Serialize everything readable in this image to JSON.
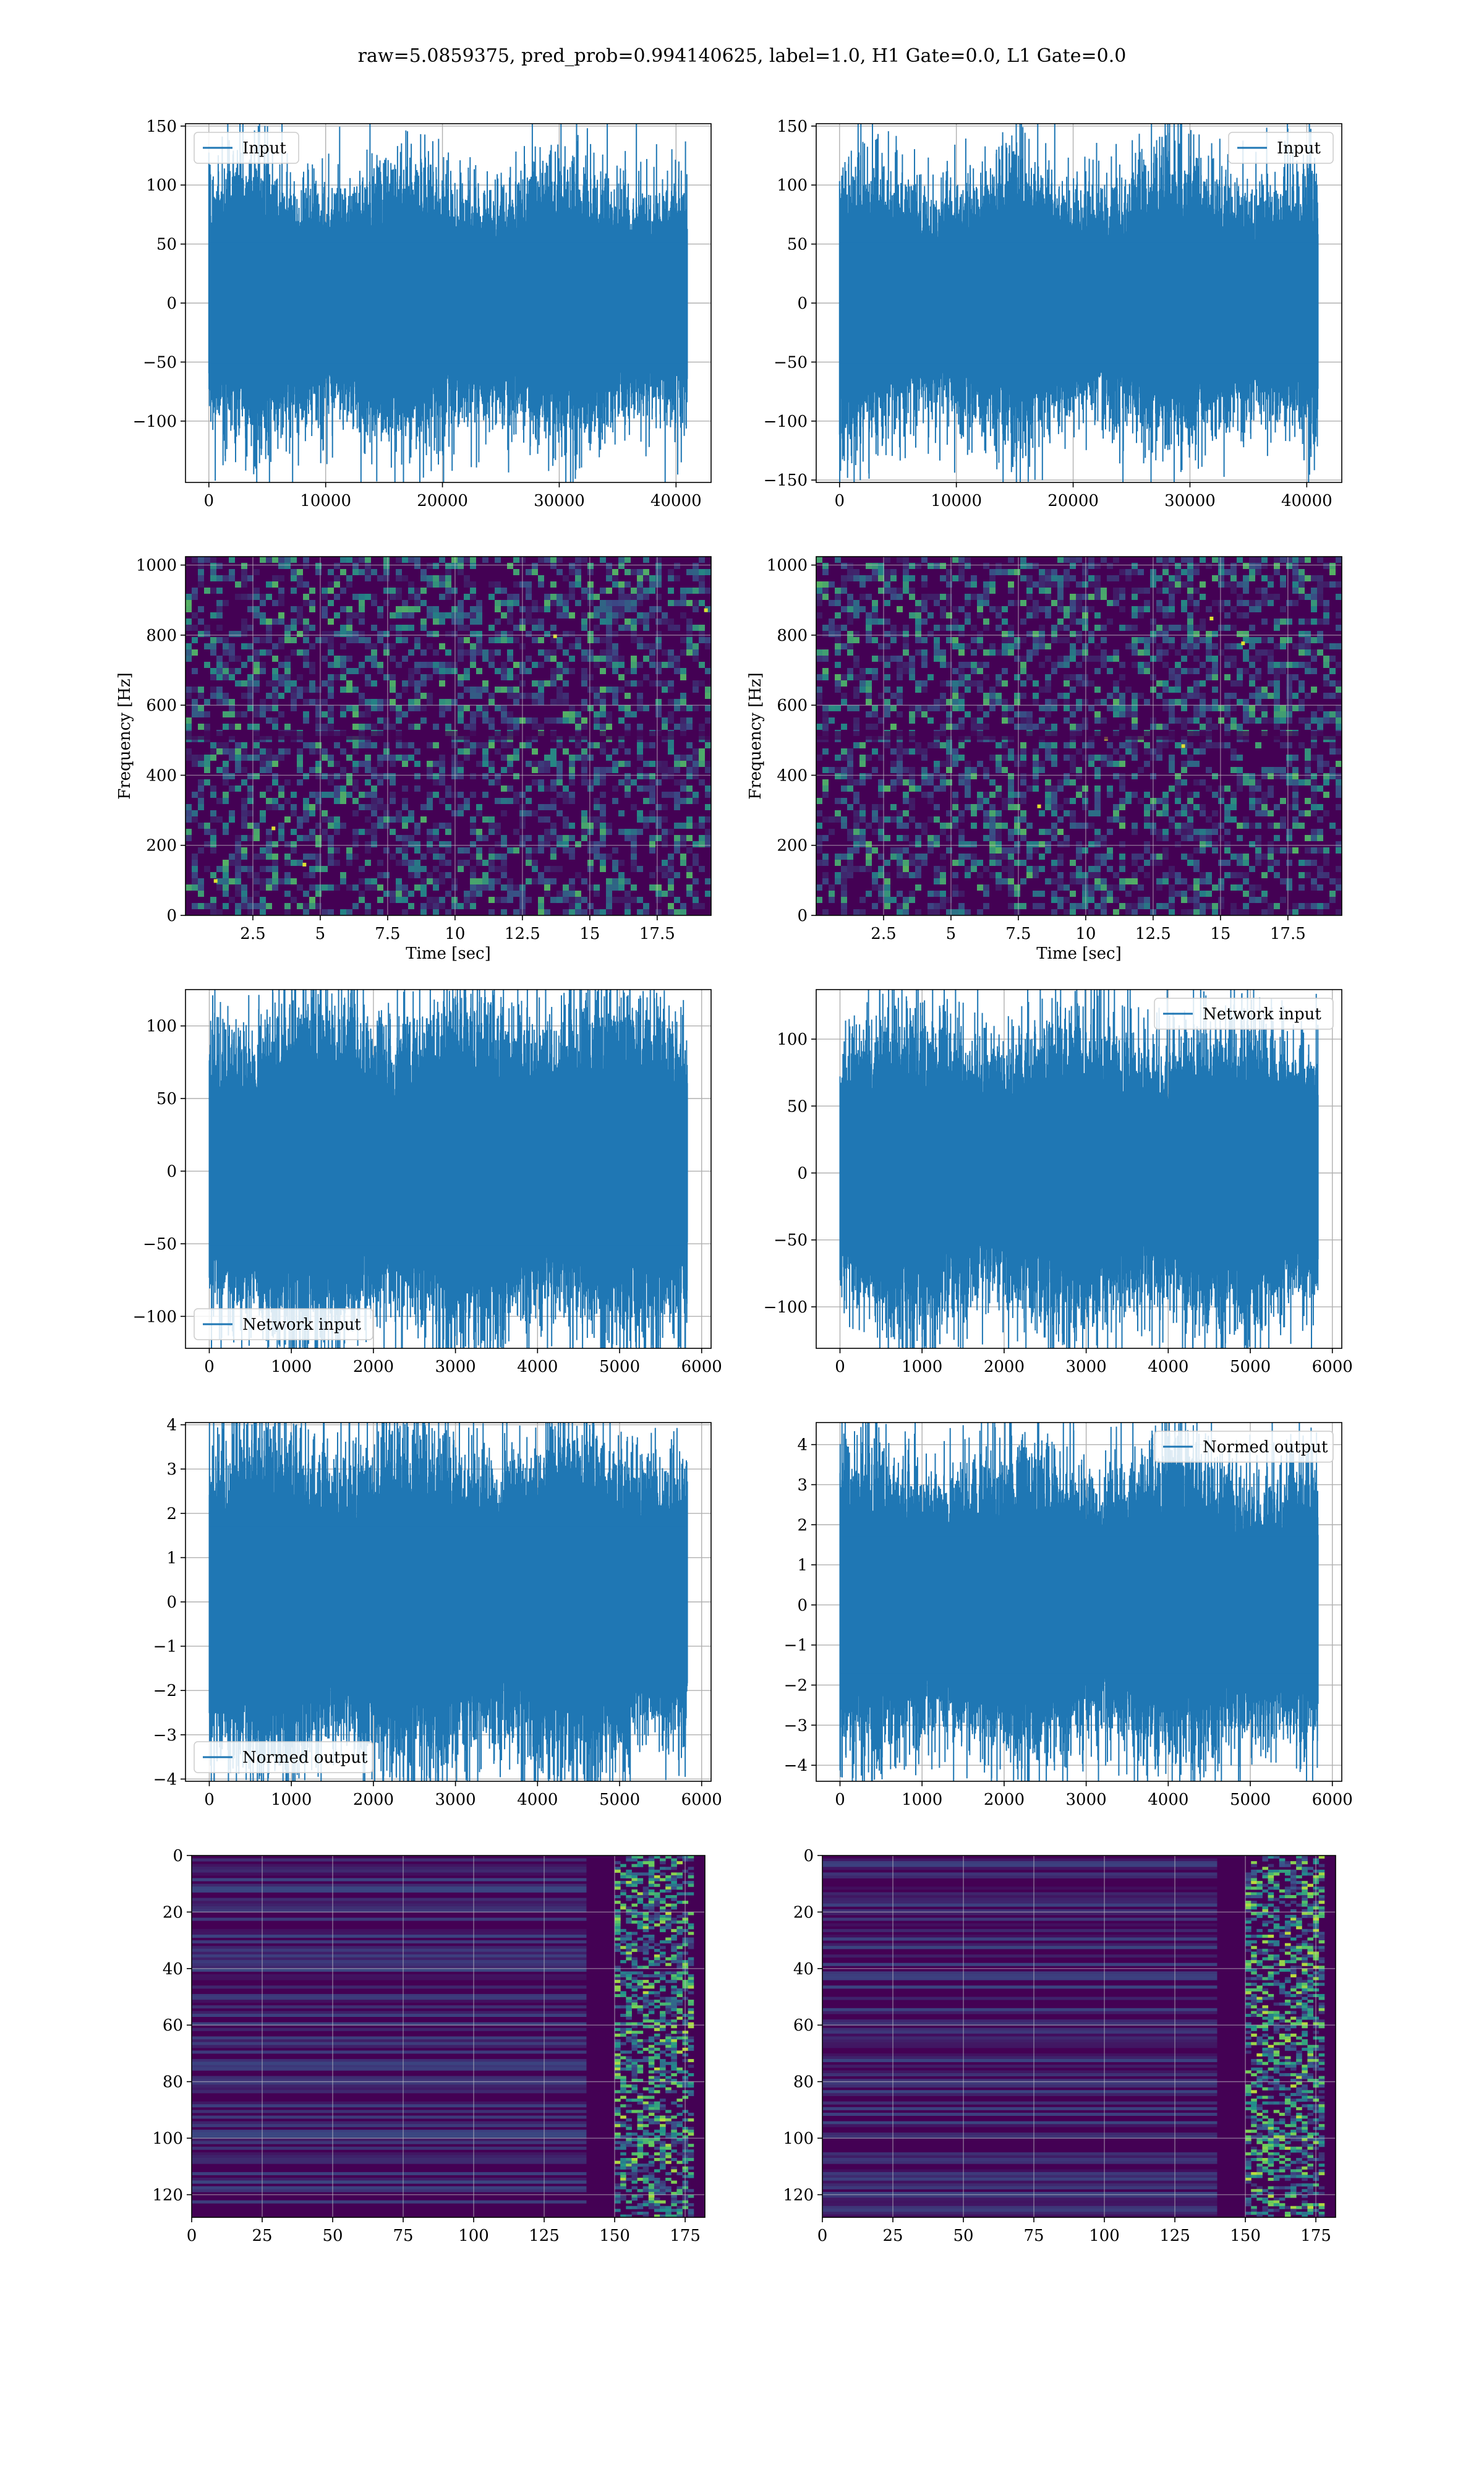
{
  "figure": {
    "suptitle": "raw=5.0859375, pred_prob=0.994140625, label=1.0, H1 Gate=0.0, L1 Gate=0.0"
  },
  "colors": {
    "line": "#1f77b4",
    "grid": "#b0b0b0",
    "viridis_dark": "#440154",
    "viridis_blue": "#31688e",
    "viridis_teal": "#21918c",
    "viridis_green": "#5ec962",
    "viridis_yellow": "#fde725"
  },
  "chart_data": [
    {
      "id": "ts-input-left",
      "type": "line",
      "series": [
        {
          "name": "Input"
        }
      ],
      "legend": "top-left",
      "xlim": [
        -2000,
        43000
      ],
      "ylim": [
        -152,
        152
      ],
      "n": 40960,
      "amplitude": 30,
      "xticks": [
        0,
        10000,
        20000,
        30000,
        40000
      ],
      "yticks": [
        -100,
        -50,
        0,
        50,
        100,
        150
      ],
      "grid": true,
      "xlabel": "",
      "ylabel": ""
    },
    {
      "id": "ts-input-right",
      "type": "line",
      "series": [
        {
          "name": "Input"
        }
      ],
      "legend": "top-right",
      "xlim": [
        -2000,
        43000
      ],
      "ylim": [
        -152,
        152
      ],
      "n": 40960,
      "amplitude": 30,
      "xticks": [
        0,
        10000,
        20000,
        30000,
        40000
      ],
      "yticks": [
        -150,
        -100,
        -50,
        0,
        50,
        100,
        150
      ],
      "grid": true,
      "xlabel": "",
      "ylabel": ""
    },
    {
      "id": "spec-left",
      "type": "heatmap",
      "xlim": [
        0,
        19.5
      ],
      "ylim": [
        0,
        1024
      ],
      "xticks": [
        2.5,
        5.0,
        7.5,
        10.0,
        12.5,
        15.0,
        17.5
      ],
      "yticks": [
        0,
        200,
        400,
        600,
        800,
        1000
      ],
      "xlabel": "Time [sec]",
      "ylabel": "Frequency [Hz]",
      "grid": true,
      "colormap": "viridis"
    },
    {
      "id": "spec-right",
      "type": "heatmap",
      "xlim": [
        0,
        19.5
      ],
      "ylim": [
        0,
        1024
      ],
      "xticks": [
        2.5,
        5.0,
        7.5,
        10.0,
        12.5,
        15.0,
        17.5
      ],
      "yticks": [
        0,
        200,
        400,
        600,
        800,
        1000
      ],
      "xlabel": "Time [sec]",
      "ylabel": "Frequency [Hz]",
      "grid": true,
      "colormap": "viridis"
    },
    {
      "id": "ts-network-left",
      "type": "line",
      "series": [
        {
          "name": "Network input"
        }
      ],
      "legend": "bottom-left",
      "xlim": [
        -290,
        6115
      ],
      "ylim": [
        -122,
        125
      ],
      "n": 5826,
      "amplitude": 30,
      "xticks": [
        0,
        1000,
        2000,
        3000,
        4000,
        5000,
        6000
      ],
      "yticks": [
        -100,
        -50,
        0,
        50,
        100
      ],
      "grid": true,
      "xlabel": "",
      "ylabel": ""
    },
    {
      "id": "ts-network-right",
      "type": "line",
      "series": [
        {
          "name": "Network input"
        }
      ],
      "legend": "top-right",
      "xlim": [
        -290,
        6115
      ],
      "ylim": [
        -131,
        137
      ],
      "n": 5826,
      "amplitude": 30,
      "xticks": [
        0,
        1000,
        2000,
        3000,
        4000,
        5000,
        6000
      ],
      "yticks": [
        -100,
        -50,
        0,
        50,
        100
      ],
      "grid": true,
      "xlabel": "",
      "ylabel": ""
    },
    {
      "id": "ts-normed-left",
      "type": "line",
      "series": [
        {
          "name": "Normed output"
        }
      ],
      "legend": "bottom-left",
      "xlim": [
        -290,
        6115
      ],
      "ylim": [
        -4.05,
        4.05
      ],
      "n": 5826,
      "amplitude": 1,
      "xticks": [
        0,
        1000,
        2000,
        3000,
        4000,
        5000,
        6000
      ],
      "yticks": [
        -4,
        -3,
        -2,
        -1,
        0,
        1,
        2,
        3,
        4
      ],
      "grid": true,
      "xlabel": "",
      "ylabel": ""
    },
    {
      "id": "ts-normed-right",
      "type": "line",
      "series": [
        {
          "name": "Normed output"
        }
      ],
      "legend": "top-right",
      "xlim": [
        -290,
        6115
      ],
      "ylim": [
        -4.4,
        4.55
      ],
      "n": 5826,
      "amplitude": 1,
      "xticks": [
        0,
        1000,
        2000,
        3000,
        4000,
        5000,
        6000
      ],
      "yticks": [
        -4,
        -3,
        -2,
        -1,
        0,
        1,
        2,
        3,
        4
      ],
      "grid": true,
      "xlabel": "",
      "ylabel": ""
    },
    {
      "id": "feat-left",
      "type": "heatmap",
      "xlim": [
        0,
        182
      ],
      "ylim": [
        128,
        0
      ],
      "xticks": [
        0,
        25,
        50,
        75,
        100,
        125,
        150,
        175
      ],
      "yticks": [
        0,
        20,
        40,
        60,
        80,
        100,
        120
      ],
      "xlabel": "",
      "ylabel": "",
      "grid": true,
      "colormap": "viridis",
      "active_band": [
        150,
        178
      ]
    },
    {
      "id": "feat-right",
      "type": "heatmap",
      "xlim": [
        0,
        182
      ],
      "ylim": [
        128,
        0
      ],
      "xticks": [
        0,
        25,
        50,
        75,
        100,
        125,
        150,
        175
      ],
      "yticks": [
        0,
        20,
        40,
        60,
        80,
        100,
        120
      ],
      "xlabel": "",
      "ylabel": "",
      "grid": true,
      "colormap": "viridis",
      "active_band": [
        150,
        178
      ]
    }
  ]
}
